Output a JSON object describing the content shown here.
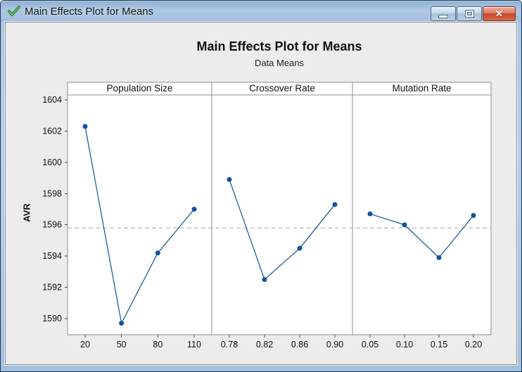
{
  "window": {
    "title": "Main Effects Plot for Means",
    "icon": "green-checkmark",
    "controls": {
      "minimize": "Minimize",
      "maximize": "Maximize",
      "close": "Close"
    }
  },
  "chart_data": {
    "type": "line",
    "title": "Main Effects Plot for Means",
    "subtitle": "Data Means",
    "ylabel": "AVR",
    "yticks": [
      1590,
      1592,
      1594,
      1596,
      1598,
      1600,
      1602,
      1604
    ],
    "ylim": [
      1588.9,
      1604.4
    ],
    "reference_line_mean": 1595.8,
    "grid": false,
    "legend": "none",
    "marker_color": "#10529e",
    "line_color": "#10529e",
    "reference_line_color": "#a6a6a6",
    "frame_color": "#8f8f8f",
    "panels": [
      {
        "label": "Population Size",
        "categories": [
          "20",
          "50",
          "80",
          "110"
        ],
        "values": [
          1602.3,
          1589.7,
          1594.2,
          1597.0
        ]
      },
      {
        "label": "Crossover Rate",
        "categories": [
          "0.78",
          "0.82",
          "0.86",
          "0.90"
        ],
        "values": [
          1598.9,
          1592.5,
          1594.5,
          1597.3
        ]
      },
      {
        "label": "Mutation Rate",
        "categories": [
          "0.05",
          "0.10",
          "0.15",
          "0.20"
        ],
        "values": [
          1596.7,
          1596.0,
          1593.9,
          1596.6
        ]
      }
    ]
  }
}
